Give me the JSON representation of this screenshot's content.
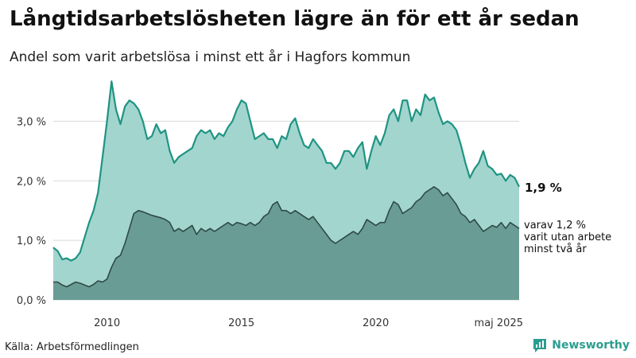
{
  "header": {
    "title": "Långtidsarbetslösheten lägre än för ett år sedan",
    "subtitle": "Andel som varit arbetslösa i minst ett år i Hagfors kommun"
  },
  "footer": {
    "source": "Källa: Arbetsförmedlingen",
    "brand": "Newsworthy",
    "brand_icon": "bar-chart-speech-icon"
  },
  "colors": {
    "upper_fill": "#a3d5cf",
    "upper_line": "#1f9482",
    "lower_fill": "#6a9c96",
    "lower_line": "#2e4a47",
    "brand": "#2a9d8f"
  },
  "chart_data": {
    "type": "area",
    "x_range": [
      "2008-01",
      "2025-05"
    ],
    "ylim": [
      0,
      3.7
    ],
    "yticks": [
      0.0,
      1.0,
      2.0,
      3.0
    ],
    "ytick_labels": [
      "0,0 %",
      "1,0 %",
      "2,0 %",
      "3,0 %"
    ],
    "xticks": [
      "2010-01",
      "2015-01",
      "2020-01",
      "2025-05"
    ],
    "xtick_labels": [
      "2010",
      "2015",
      "2020",
      "maj 2025"
    ],
    "grid": true,
    "annotations": {
      "total_label": "1,9 %",
      "subset_label_lines": [
        "varav 1,2 %",
        "varit utan arbete",
        "minst två år"
      ]
    },
    "series": [
      {
        "key": "total",
        "points": [
          [
            "2008-01",
            0.88
          ],
          [
            "2008-03",
            0.82
          ],
          [
            "2008-05",
            0.68
          ],
          [
            "2008-07",
            0.7
          ],
          [
            "2008-09",
            0.66
          ],
          [
            "2008-11",
            0.7
          ],
          [
            "2009-01",
            0.8
          ],
          [
            "2009-03",
            1.05
          ],
          [
            "2009-05",
            1.3
          ],
          [
            "2009-07",
            1.5
          ],
          [
            "2009-09",
            1.8
          ],
          [
            "2009-11",
            2.4
          ],
          [
            "2010-01",
            3.0
          ],
          [
            "2010-03",
            3.67
          ],
          [
            "2010-05",
            3.2
          ],
          [
            "2010-07",
            2.95
          ],
          [
            "2010-09",
            3.25
          ],
          [
            "2010-11",
            3.35
          ],
          [
            "2011-01",
            3.3
          ],
          [
            "2011-03",
            3.2
          ],
          [
            "2011-05",
            3.0
          ],
          [
            "2011-07",
            2.7
          ],
          [
            "2011-09",
            2.75
          ],
          [
            "2011-11",
            2.95
          ],
          [
            "2012-01",
            2.8
          ],
          [
            "2012-03",
            2.85
          ],
          [
            "2012-05",
            2.5
          ],
          [
            "2012-07",
            2.3
          ],
          [
            "2012-09",
            2.4
          ],
          [
            "2012-11",
            2.45
          ],
          [
            "2013-01",
            2.5
          ],
          [
            "2013-03",
            2.55
          ],
          [
            "2013-05",
            2.75
          ],
          [
            "2013-07",
            2.85
          ],
          [
            "2013-09",
            2.8
          ],
          [
            "2013-11",
            2.85
          ],
          [
            "2014-01",
            2.7
          ],
          [
            "2014-03",
            2.8
          ],
          [
            "2014-05",
            2.75
          ],
          [
            "2014-07",
            2.9
          ],
          [
            "2014-09",
            3.0
          ],
          [
            "2014-11",
            3.2
          ],
          [
            "2015-01",
            3.35
          ],
          [
            "2015-03",
            3.3
          ],
          [
            "2015-05",
            3.0
          ],
          [
            "2015-07",
            2.7
          ],
          [
            "2015-09",
            2.75
          ],
          [
            "2015-11",
            2.8
          ],
          [
            "2016-01",
            2.7
          ],
          [
            "2016-03",
            2.7
          ],
          [
            "2016-05",
            2.55
          ],
          [
            "2016-07",
            2.75
          ],
          [
            "2016-09",
            2.7
          ],
          [
            "2016-11",
            2.95
          ],
          [
            "2017-01",
            3.05
          ],
          [
            "2017-03",
            2.8
          ],
          [
            "2017-05",
            2.6
          ],
          [
            "2017-07",
            2.55
          ],
          [
            "2017-09",
            2.7
          ],
          [
            "2017-11",
            2.6
          ],
          [
            "2018-01",
            2.5
          ],
          [
            "2018-03",
            2.3
          ],
          [
            "2018-05",
            2.3
          ],
          [
            "2018-07",
            2.2
          ],
          [
            "2018-09",
            2.3
          ],
          [
            "2018-11",
            2.5
          ],
          [
            "2019-01",
            2.5
          ],
          [
            "2019-03",
            2.4
          ],
          [
            "2019-05",
            2.55
          ],
          [
            "2019-07",
            2.65
          ],
          [
            "2019-09",
            2.2
          ],
          [
            "2019-11",
            2.5
          ],
          [
            "2020-01",
            2.75
          ],
          [
            "2020-03",
            2.6
          ],
          [
            "2020-05",
            2.8
          ],
          [
            "2020-07",
            3.1
          ],
          [
            "2020-09",
            3.2
          ],
          [
            "2020-11",
            3.0
          ],
          [
            "2021-01",
            3.35
          ],
          [
            "2021-03",
            3.35
          ],
          [
            "2021-05",
            3.0
          ],
          [
            "2021-07",
            3.2
          ],
          [
            "2021-09",
            3.1
          ],
          [
            "2021-11",
            3.45
          ],
          [
            "2022-01",
            3.35
          ],
          [
            "2022-03",
            3.4
          ],
          [
            "2022-05",
            3.15
          ],
          [
            "2022-07",
            2.95
          ],
          [
            "2022-09",
            3.0
          ],
          [
            "2022-11",
            2.95
          ],
          [
            "2023-01",
            2.85
          ],
          [
            "2023-03",
            2.6
          ],
          [
            "2023-05",
            2.3
          ],
          [
            "2023-07",
            2.05
          ],
          [
            "2023-09",
            2.2
          ],
          [
            "2023-11",
            2.3
          ],
          [
            "2024-01",
            2.5
          ],
          [
            "2024-03",
            2.25
          ],
          [
            "2024-05",
            2.2
          ],
          [
            "2024-07",
            2.1
          ],
          [
            "2024-09",
            2.12
          ],
          [
            "2024-11",
            2.0
          ],
          [
            "2025-01",
            2.1
          ],
          [
            "2025-03",
            2.05
          ],
          [
            "2025-05",
            1.9
          ]
        ]
      },
      {
        "key": "subset",
        "points": [
          [
            "2008-01",
            0.3
          ],
          [
            "2008-03",
            0.3
          ],
          [
            "2008-05",
            0.25
          ],
          [
            "2008-07",
            0.22
          ],
          [
            "2008-09",
            0.26
          ],
          [
            "2008-11",
            0.3
          ],
          [
            "2009-01",
            0.28
          ],
          [
            "2009-03",
            0.25
          ],
          [
            "2009-05",
            0.22
          ],
          [
            "2009-07",
            0.26
          ],
          [
            "2009-09",
            0.32
          ],
          [
            "2009-11",
            0.3
          ],
          [
            "2010-01",
            0.35
          ],
          [
            "2010-03",
            0.55
          ],
          [
            "2010-05",
            0.7
          ],
          [
            "2010-07",
            0.75
          ],
          [
            "2010-09",
            0.95
          ],
          [
            "2010-11",
            1.2
          ],
          [
            "2011-01",
            1.45
          ],
          [
            "2011-03",
            1.5
          ],
          [
            "2011-05",
            1.48
          ],
          [
            "2011-07",
            1.45
          ],
          [
            "2011-09",
            1.42
          ],
          [
            "2011-11",
            1.4
          ],
          [
            "2012-01",
            1.38
          ],
          [
            "2012-03",
            1.35
          ],
          [
            "2012-05",
            1.3
          ],
          [
            "2012-07",
            1.15
          ],
          [
            "2012-09",
            1.2
          ],
          [
            "2012-11",
            1.15
          ],
          [
            "2013-01",
            1.2
          ],
          [
            "2013-03",
            1.25
          ],
          [
            "2013-05",
            1.1
          ],
          [
            "2013-07",
            1.2
          ],
          [
            "2013-09",
            1.15
          ],
          [
            "2013-11",
            1.2
          ],
          [
            "2014-01",
            1.15
          ],
          [
            "2014-03",
            1.2
          ],
          [
            "2014-05",
            1.25
          ],
          [
            "2014-07",
            1.3
          ],
          [
            "2014-09",
            1.25
          ],
          [
            "2014-11",
            1.3
          ],
          [
            "2015-01",
            1.28
          ],
          [
            "2015-03",
            1.25
          ],
          [
            "2015-05",
            1.3
          ],
          [
            "2015-07",
            1.25
          ],
          [
            "2015-09",
            1.3
          ],
          [
            "2015-11",
            1.4
          ],
          [
            "2016-01",
            1.45
          ],
          [
            "2016-03",
            1.6
          ],
          [
            "2016-05",
            1.65
          ],
          [
            "2016-07",
            1.5
          ],
          [
            "2016-09",
            1.5
          ],
          [
            "2016-11",
            1.45
          ],
          [
            "2017-01",
            1.5
          ],
          [
            "2017-03",
            1.45
          ],
          [
            "2017-05",
            1.4
          ],
          [
            "2017-07",
            1.35
          ],
          [
            "2017-09",
            1.4
          ],
          [
            "2017-11",
            1.3
          ],
          [
            "2018-01",
            1.2
          ],
          [
            "2018-03",
            1.1
          ],
          [
            "2018-05",
            1.0
          ],
          [
            "2018-07",
            0.95
          ],
          [
            "2018-09",
            1.0
          ],
          [
            "2018-11",
            1.05
          ],
          [
            "2019-01",
            1.1
          ],
          [
            "2019-03",
            1.15
          ],
          [
            "2019-05",
            1.1
          ],
          [
            "2019-07",
            1.2
          ],
          [
            "2019-09",
            1.35
          ],
          [
            "2019-11",
            1.3
          ],
          [
            "2020-01",
            1.25
          ],
          [
            "2020-03",
            1.3
          ],
          [
            "2020-05",
            1.3
          ],
          [
            "2020-07",
            1.5
          ],
          [
            "2020-09",
            1.65
          ],
          [
            "2020-11",
            1.6
          ],
          [
            "2021-01",
            1.45
          ],
          [
            "2021-03",
            1.5
          ],
          [
            "2021-05",
            1.55
          ],
          [
            "2021-07",
            1.65
          ],
          [
            "2021-09",
            1.7
          ],
          [
            "2021-11",
            1.8
          ],
          [
            "2022-01",
            1.85
          ],
          [
            "2022-03",
            1.9
          ],
          [
            "2022-05",
            1.85
          ],
          [
            "2022-07",
            1.75
          ],
          [
            "2022-09",
            1.8
          ],
          [
            "2022-11",
            1.7
          ],
          [
            "2023-01",
            1.6
          ],
          [
            "2023-03",
            1.45
          ],
          [
            "2023-05",
            1.4
          ],
          [
            "2023-07",
            1.3
          ],
          [
            "2023-09",
            1.35
          ],
          [
            "2023-11",
            1.25
          ],
          [
            "2024-01",
            1.15
          ],
          [
            "2024-03",
            1.2
          ],
          [
            "2024-05",
            1.25
          ],
          [
            "2024-07",
            1.22
          ],
          [
            "2024-09",
            1.3
          ],
          [
            "2024-11",
            1.2
          ],
          [
            "2025-01",
            1.3
          ],
          [
            "2025-03",
            1.25
          ],
          [
            "2025-05",
            1.2
          ]
        ]
      }
    ]
  }
}
